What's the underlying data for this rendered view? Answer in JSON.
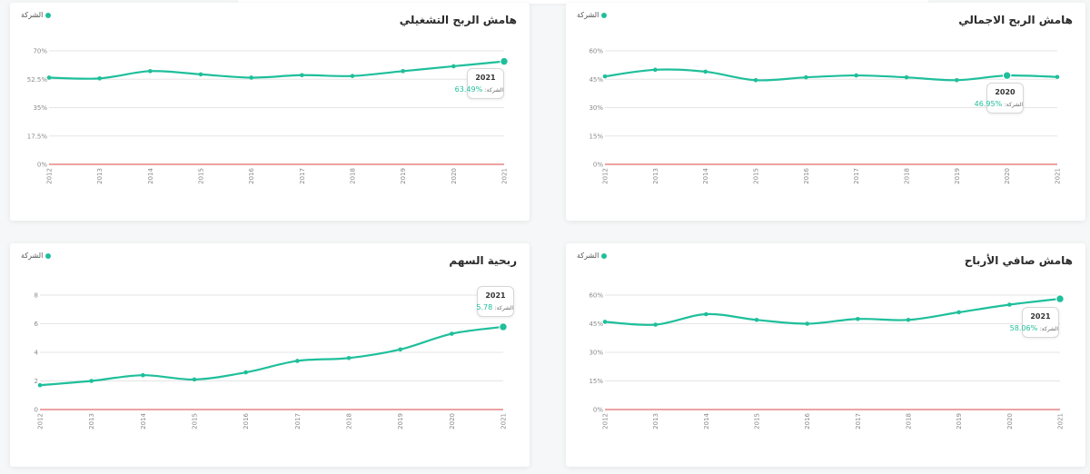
{
  "legend_label": "الشركة",
  "colors": {
    "series": "#1fbf9b",
    "zero_line": "#e06c6c",
    "grid": "#e5e5e5"
  },
  "charts": {
    "operating_margin": {
      "title": "هامش الربح التشغيلي",
      "tooltip": {
        "year": "2021",
        "label": "الشركة:",
        "value": "%63.49"
      }
    },
    "gross_margin": {
      "title": "هامش الربح الاجمالي",
      "tooltip": {
        "year": "2020",
        "label": "الشركة:",
        "value": "%46.95"
      }
    },
    "eps": {
      "title": "ربحية السهم",
      "tooltip": {
        "year": "2021",
        "label": "الشركة:",
        "value": "5.78"
      }
    },
    "net_margin": {
      "title": "هامش صافي الأرباح",
      "tooltip": {
        "year": "2021",
        "label": "الشركة:",
        "value": "%58.06"
      }
    }
  },
  "chart_data": [
    {
      "id": "operating_margin",
      "type": "line",
      "title": "هامش الربح التشغيلي",
      "x": [
        "2012",
        "2013",
        "2014",
        "2015",
        "2016",
        "2017",
        "2018",
        "2019",
        "2020",
        "2021"
      ],
      "series": [
        {
          "name": "الشركة",
          "values": [
            53.5,
            53.0,
            57.5,
            55.5,
            53.5,
            55.0,
            54.5,
            57.5,
            60.5,
            63.49
          ]
        }
      ],
      "yticks": [
        "0%",
        "17.5%",
        "35%",
        "52.5%",
        "70%"
      ],
      "ylim": [
        0,
        70
      ],
      "highlight_index": 9,
      "grid": true
    },
    {
      "id": "gross_margin",
      "type": "line",
      "title": "هامش الربح الاجمالي",
      "x": [
        "2012",
        "2013",
        "2014",
        "2015",
        "2016",
        "2017",
        "2018",
        "2019",
        "2020",
        "2021"
      ],
      "series": [
        {
          "name": "الشركة",
          "values": [
            46.5,
            50.0,
            49.0,
            44.5,
            46.0,
            47.0,
            46.0,
            44.5,
            46.95,
            46.2
          ]
        }
      ],
      "yticks": [
        "0%",
        "15%",
        "30%",
        "45%",
        "60%"
      ],
      "ylim": [
        0,
        60
      ],
      "highlight_index": 8,
      "grid": true
    },
    {
      "id": "eps",
      "type": "line",
      "title": "ربحية السهم",
      "x": [
        "2012",
        "2013",
        "2014",
        "2015",
        "2016",
        "2017",
        "2018",
        "2019",
        "2020",
        "2021"
      ],
      "series": [
        {
          "name": "الشركة",
          "values": [
            1.7,
            2.0,
            2.4,
            2.1,
            2.6,
            3.4,
            3.6,
            4.2,
            5.3,
            5.78
          ]
        }
      ],
      "yticks": [
        "0",
        "2",
        "4",
        "6",
        "8"
      ],
      "ylim": [
        0,
        8
      ],
      "highlight_index": 9,
      "grid": true
    },
    {
      "id": "net_margin",
      "type": "line",
      "title": "هامش صافي الأرباح",
      "x": [
        "2012",
        "2013",
        "2014",
        "2015",
        "2016",
        "2017",
        "2018",
        "2019",
        "2020",
        "2021"
      ],
      "series": [
        {
          "name": "الشركة",
          "values": [
            46.0,
            44.5,
            50.0,
            47.0,
            45.0,
            47.5,
            47.0,
            51.0,
            55.0,
            58.06
          ]
        }
      ],
      "yticks": [
        "0%",
        "15%",
        "30%",
        "45%",
        "60%"
      ],
      "ylim": [
        0,
        60
      ],
      "highlight_index": 9,
      "grid": true
    }
  ]
}
